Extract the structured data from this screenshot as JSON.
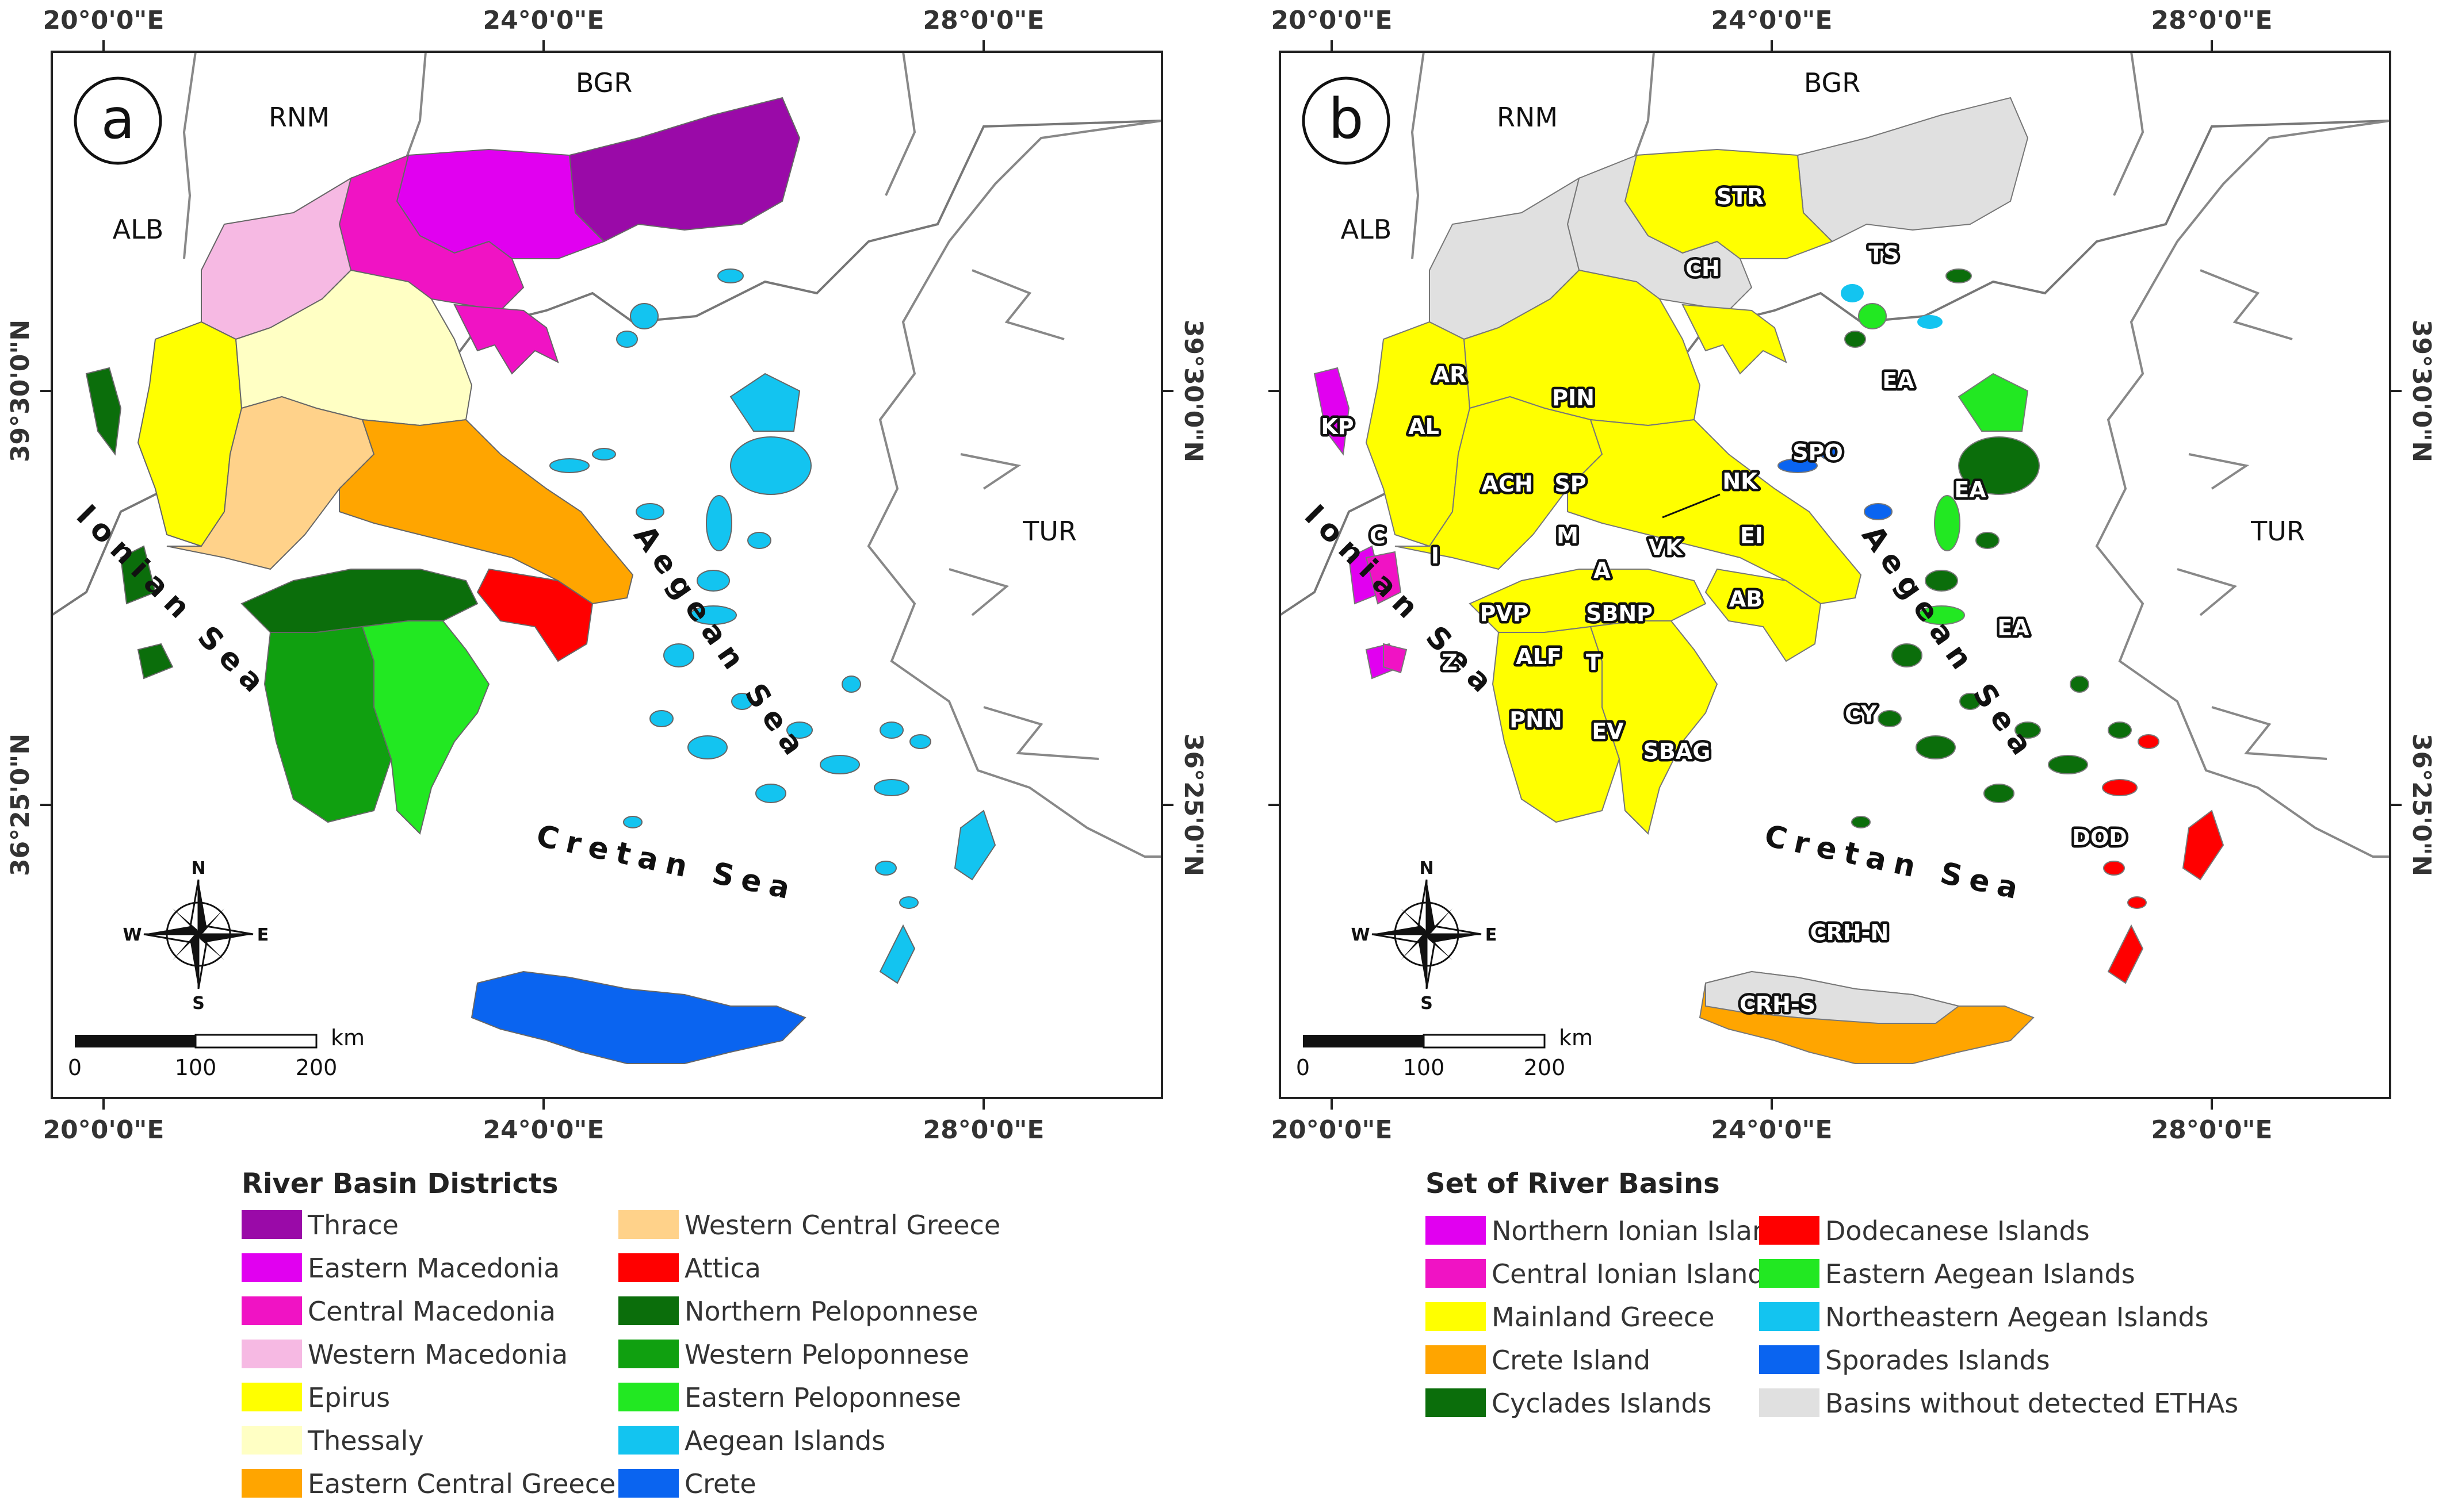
{
  "map_a": {
    "panel_label": "a",
    "coords_top": [
      "20°0'0\"E",
      "24°0'0\"E",
      "28°0'0\"E"
    ],
    "coords_bottom": [
      "20°0'0\"E",
      "24°0'0\"E",
      "28°0'0\"E"
    ],
    "lat_left": [
      "39°30'0\"N",
      "36°25'0\"N"
    ],
    "lat_right": [
      "39°30'0\"N",
      "36°25'0\"N"
    ],
    "countries": [
      "ALB",
      "RNM",
      "BGR",
      "TUR"
    ],
    "seas": {
      "ionian": "Ionian Sea",
      "aegean": "Aegean Sea",
      "cretan": "Cretan Sea"
    },
    "compass": {
      "n": "N",
      "s": "S",
      "e": "E",
      "w": "W"
    },
    "scale": {
      "labels": [
        "0",
        "100",
        "200"
      ],
      "unit": "km"
    }
  },
  "map_b": {
    "panel_label": "b",
    "coords_top": [
      "20°0'0\"E",
      "24°0'0\"E",
      "28°0'0\"E"
    ],
    "coords_bottom": [
      "20°0'0\"E",
      "24°0'0\"E",
      "28°0'0\"E"
    ],
    "lat_right": [
      "39°30'0\"N",
      "36°25'0\"N"
    ],
    "countries": [
      "ALB",
      "RNM",
      "BGR",
      "TUR"
    ],
    "seas": {
      "ionian": "Ionian Sea",
      "aegean": "Aegean Sea",
      "cretan": "Cretan Sea"
    },
    "basin_codes": [
      "STR",
      "CH",
      "TS",
      "EA",
      "AR",
      "PIN",
      "KP",
      "AL",
      "SPO",
      "NK",
      "EA",
      "ACH",
      "SP",
      "C",
      "I",
      "M",
      "VK",
      "EI",
      "A",
      "AB",
      "PVP",
      "SBNP",
      "EA",
      "Z",
      "ALF",
      "T",
      "CY",
      "PNN",
      "EV",
      "SBAG",
      "DOD",
      "CRH-N",
      "CRH-S"
    ],
    "compass": {
      "n": "N",
      "s": "S",
      "e": "E",
      "w": "W"
    },
    "scale": {
      "labels": [
        "0",
        "100",
        "200"
      ],
      "unit": "km"
    }
  },
  "legend_a": {
    "title": "River Basin Districts",
    "items": [
      {
        "label": "Thrace",
        "color": "#9a0aa8"
      },
      {
        "label": "Eastern Macedonia",
        "color": "#e100f0"
      },
      {
        "label": "Central Macedonia",
        "color": "#f013c4"
      },
      {
        "label": "Western Macedonia",
        "color": "#f6b9e3"
      },
      {
        "label": "Epirus",
        "color": "#ffff00"
      },
      {
        "label": "Thessaly",
        "color": "#ffffc4"
      },
      {
        "label": "Eastern Central Greece",
        "color": "#ffa500"
      },
      {
        "label": "Western Central Greece",
        "color": "#ffd28a"
      },
      {
        "label": "Attica",
        "color": "#ff0000"
      },
      {
        "label": "Northern Peloponnese",
        "color": "#0b6e0b"
      },
      {
        "label": "Western Peloponnese",
        "color": "#10a010"
      },
      {
        "label": "Eastern Peloponnese",
        "color": "#22e822"
      },
      {
        "label": "Aegean Islands",
        "color": "#13c4f0"
      },
      {
        "label": "Crete",
        "color": "#0a64f0"
      }
    ]
  },
  "legend_b": {
    "title": "Set of River Basins",
    "items": [
      {
        "label": "Northern Ionian Islands",
        "color": "#e100f0"
      },
      {
        "label": "Central Ionian Islands",
        "color": "#f013c4"
      },
      {
        "label": "Mainland Greece",
        "color": "#ffff00"
      },
      {
        "label": "Crete Island",
        "color": "#ffa500"
      },
      {
        "label": "Cyclades Islands",
        "color": "#0b6e0b"
      },
      {
        "label": "Dodecanese Islands",
        "color": "#ff0000"
      },
      {
        "label": "Eastern Aegean Islands",
        "color": "#22e822"
      },
      {
        "label": "Northeastern Aegean Islands",
        "color": "#13c4f0"
      },
      {
        "label": "Sporades Islands",
        "color": "#0a64f0"
      },
      {
        "label": "Basins without detected ETHAs",
        "color": "#e0e0e0"
      }
    ]
  }
}
